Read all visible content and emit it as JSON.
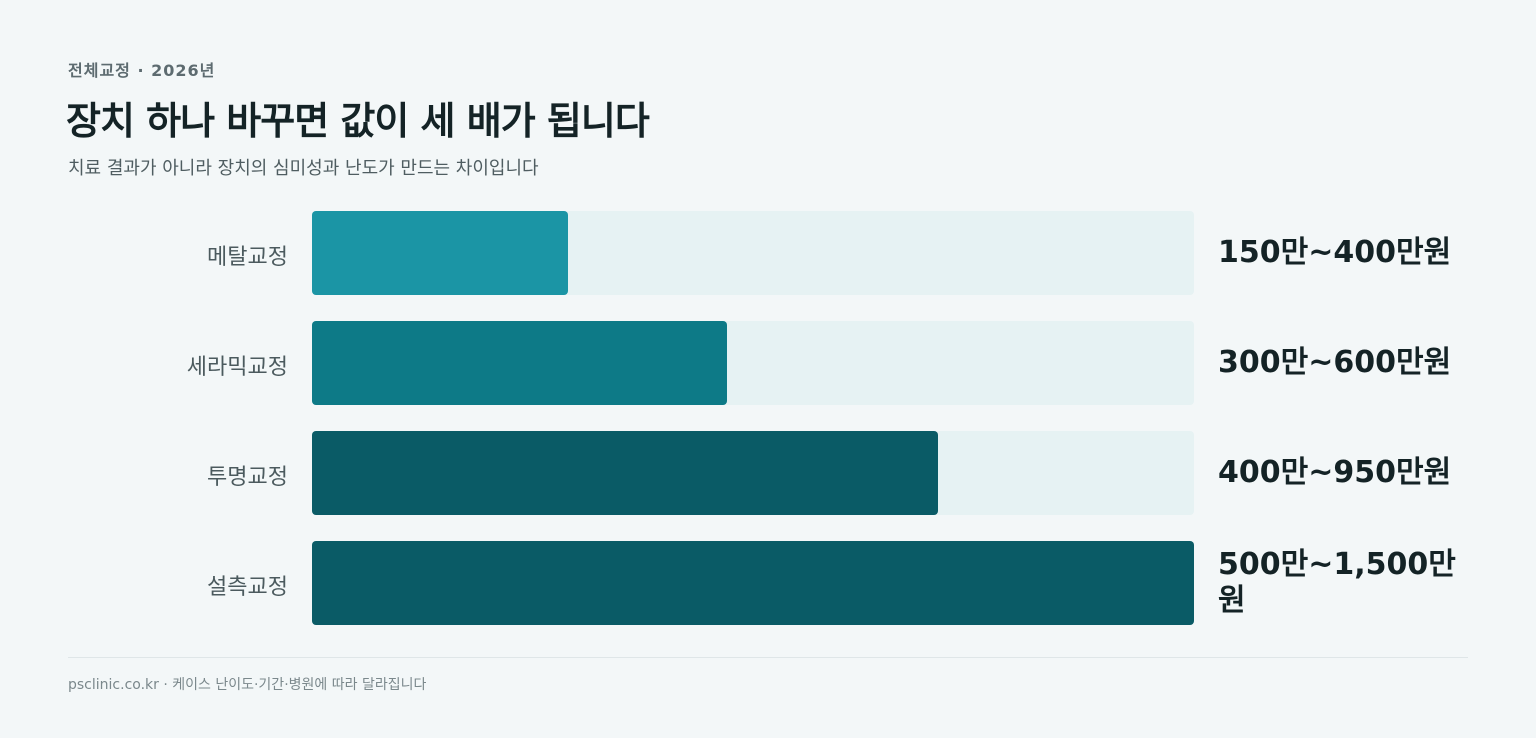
{
  "chart_data": {
    "type": "bar",
    "orientation": "horizontal",
    "eyebrow": "전체교정 · 2026년",
    "title": "장치 하나 바꾸면 값이 세 배가 됩니다",
    "subtitle": "치료 결과가 아니라 장치의 심미성과 난도가 만드는 차이입니다",
    "categories": [
      "메탈교정",
      "세라믹교정",
      "투명교정",
      "설측교정"
    ],
    "values": [
      29,
      47,
      71,
      100
    ],
    "price_ranges": [
      "150만~400만원",
      "300만~600만원",
      "400만~950만원",
      "500만~1,500만원"
    ],
    "colors": [
      "#1b95a5",
      "#0d7a87",
      "#0a5b66",
      "#0a5b66"
    ],
    "track_color": "#e6f2f3",
    "xlim": [
      0,
      100
    ],
    "footnote": "psclinic.co.kr · 케이스 난이도·기간·병원에 따라 달라집니다"
  }
}
